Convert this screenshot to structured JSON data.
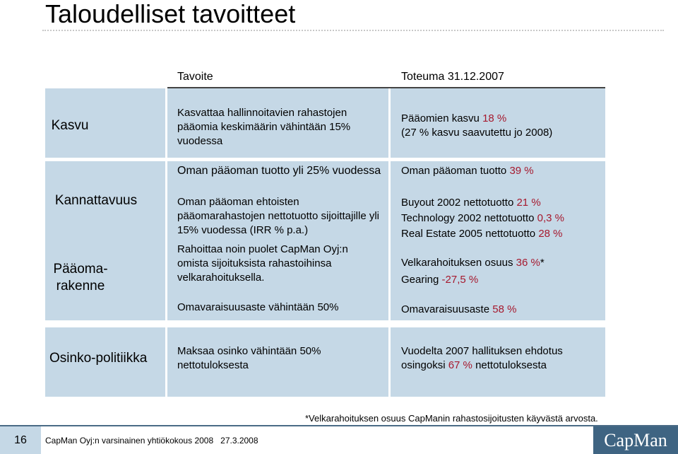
{
  "title": "Taloudelliset tavoitteet",
  "headers": {
    "goal": "Tavoite",
    "actual": "Toteuma 31.12.2007"
  },
  "rows": {
    "kasvu": {
      "label": "Kasvu",
      "goal": "Kasvattaa hallinnoitavien rahastojen pääomia keskimäärin vähintään 15% vuodessa",
      "actual_pre": "Pääomien kasvu ",
      "actual_hl": "18 %",
      "actual_line2": "(27 % kasvu saavutettu jo 2008)"
    },
    "kannattavuus": {
      "label": "Kannattavuus",
      "goal1": "Oman pääoman tuotto yli 25% vuodessa",
      "actual1_pre": "Oman pääoman tuotto ",
      "actual1_hl": "39 %",
      "goal2": "Oman pääoman ehtoisten pääomarahastojen nettotuotto sijoittajille yli 15% vuodessa (IRR % p.a.)",
      "actual2": [
        {
          "pre": "Buyout 2002 nettotuotto ",
          "hl": "21 %"
        },
        {
          "pre": "Technology 2002 nettotuotto ",
          "hl": "0,3 %"
        },
        {
          "pre": "Real Estate 2005 nettotuotto ",
          "hl": "28 %"
        }
      ]
    },
    "paaomarakenne": {
      "label_line1": "Pääoma-",
      "label_line2": "rakenne",
      "goal1": "Rahoittaa noin puolet CapMan Oyj:n omista sijoituksista rahastoihinsa velkarahoituksella.",
      "actual1_pre": "Velkarahoituksen osuus ",
      "actual1_hl": "36 %",
      "actual1_post": "*",
      "actual1b_pre": "Gearing ",
      "actual1b_hl": "-27,5 %",
      "goal2": "Omavaraisuusaste vähintään 50%",
      "actual2_pre": "Omavaraisuusaste ",
      "actual2_hl": "58 %"
    },
    "osinko": {
      "label": "Osinko-politiikka",
      "goal": "Maksaa osinko vähintään 50% nettotuloksesta",
      "actual_line1": "Vuodelta 2007 hallituksen ehdotus",
      "actual_pre": "osingoksi ",
      "actual_hl": "67 %",
      "actual_post": " nettotuloksesta"
    }
  },
  "footnote": "*Velkarahoituksen osuus CapManin rahastosijoitusten käyvästä arvosta.",
  "footer": {
    "page": "16",
    "text": "CapMan Oyj:n varsinainen yhtiökokous 2008   27.3.2008",
    "logo": "CapMan"
  },
  "colors": {
    "cell": "#c5d8e6",
    "highlight": "#a6192e",
    "logo_bg": "#3f6482"
  }
}
